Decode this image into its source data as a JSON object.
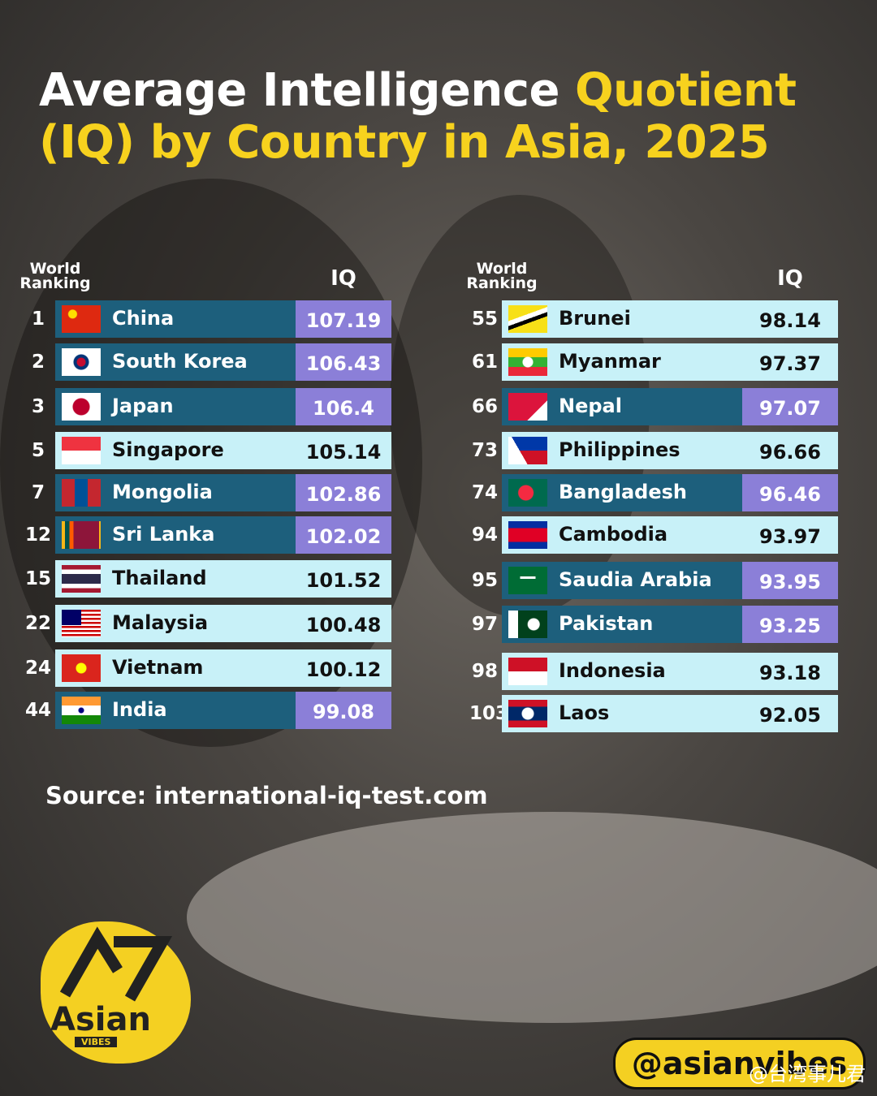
{
  "title": {
    "white": "Average Intelligence",
    "yellow": "Quotient (IQ) by Country in Asia, 2025"
  },
  "tables": [
    {
      "header": {
        "ranking": "World Ranking",
        "iq": "IQ"
      },
      "rows": [
        {
          "rank": 1,
          "country": "China",
          "iq": 107.19
        },
        {
          "rank": 2,
          "country": "South Korea",
          "iq": 106.43
        },
        {
          "rank": 3,
          "country": "Japan",
          "iq": 106.4
        },
        {
          "rank": 5,
          "country": "Singapore",
          "iq": 105.14
        },
        {
          "rank": 7,
          "country": "Mongolia",
          "iq": 102.86
        },
        {
          "rank": 12,
          "country": "Sri Lanka",
          "iq": 102.02
        },
        {
          "rank": 15,
          "country": "Thailand",
          "iq": 101.52
        },
        {
          "rank": 22,
          "country": "Malaysia",
          "iq": 100.48
        },
        {
          "rank": 24,
          "country": "Vietnam",
          "iq": 100.12
        },
        {
          "rank": 44,
          "country": "India",
          "iq": 99.08
        }
      ]
    },
    {
      "header": {
        "ranking": "World Ranking",
        "iq": "IQ"
      },
      "rows": [
        {
          "rank": 55,
          "country": "Brunei",
          "iq": 98.14
        },
        {
          "rank": 61,
          "country": "Myanmar",
          "iq": 97.37
        },
        {
          "rank": 66,
          "country": "Nepal",
          "iq": 97.07
        },
        {
          "rank": 73,
          "country": "Philippines",
          "iq": 96.66
        },
        {
          "rank": 74,
          "country": "Bangladesh",
          "iq": 96.46
        },
        {
          "rank": 94,
          "country": "Cambodia",
          "iq": 93.97
        },
        {
          "rank": 95,
          "country": "Saudia Arabia",
          "iq": 93.95
        },
        {
          "rank": 97,
          "country": "Pakistan",
          "iq": 93.25
        },
        {
          "rank": 98,
          "country": "Indonesia",
          "iq": 93.18
        },
        {
          "rank": 103,
          "country": "Laos",
          "iq": 92.05
        }
      ]
    }
  ],
  "source": "Source: international-iq-test.com",
  "logo": {
    "name": "Asian",
    "tagline": "VIBES"
  },
  "handle": "@asianvibes",
  "watermark": "@台湾事儿君"
}
